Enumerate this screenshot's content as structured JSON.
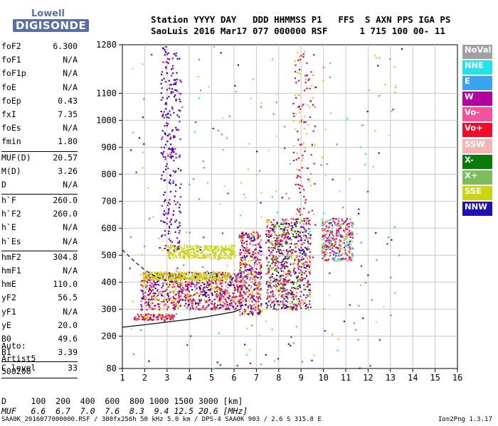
{
  "logo": {
    "line1": "Lowell",
    "line2": "DIGISONDE"
  },
  "header": {
    "line1": "Station YYYY DAY   DDD HHMMSS P1   FFS  S AXN PPS IGA PS",
    "line2": "SaoLuis 2016 Mar17 077 000000 RSF      1 715 100 00- 11"
  },
  "params": [
    [
      {
        "k": "foF2",
        "v": "6.300"
      },
      {
        "k": "foF1",
        "v": "N/A"
      },
      {
        "k": "foF1p",
        "v": "N/A"
      },
      {
        "k": "foE",
        "v": "N/A"
      },
      {
        "k": "foEp",
        "v": "0.43"
      },
      {
        "k": "fxI",
        "v": "7.35"
      },
      {
        "k": "foEs",
        "v": "N/A"
      },
      {
        "k": "fmin",
        "v": "1.80"
      }
    ],
    [
      {
        "k": "MUF(D)",
        "v": "20.57"
      },
      {
        "k": "M(D)",
        "v": "3.26"
      },
      {
        "k": "D",
        "v": "N/A"
      }
    ],
    [
      {
        "k": "h`F",
        "v": "260.0"
      },
      {
        "k": "h`F2",
        "v": "260.0"
      },
      {
        "k": "h`E",
        "v": "N/A"
      },
      {
        "k": "h`Es",
        "v": "N/A"
      }
    ],
    [
      {
        "k": "hmF2",
        "v": "304.8"
      },
      {
        "k": "hmF1",
        "v": "N/A"
      },
      {
        "k": "hmE",
        "v": "110.0"
      },
      {
        "k": "yF2",
        "v": "56.5"
      },
      {
        "k": "yF1",
        "v": "N/A"
      },
      {
        "k": "yE",
        "v": "20.0"
      },
      {
        "k": "B0",
        "v": "49.6"
      },
      {
        "k": "B1",
        "v": "3.39"
      }
    ],
    [
      {
        "k": "C-level",
        "v": "33"
      }
    ]
  ],
  "auto": {
    "l1": "Auto:",
    "l2": "Artist5",
    "l3": "500200"
  },
  "legend": [
    {
      "label": "NoVal",
      "bg": "#a0a0a0",
      "fg": "#ffffff"
    },
    {
      "label": "NNE",
      "bg": "#22e4e8",
      "fg": "#ffffff"
    },
    {
      "label": "E",
      "bg": "#3ba4ee",
      "fg": "#ffffff"
    },
    {
      "label": "W",
      "bg": "#b4009c",
      "fg": "#ffffff"
    },
    {
      "label": "Vo-",
      "bg": "#f6529c",
      "fg": "#ffffff"
    },
    {
      "label": "Vo+",
      "bg": "#f40a2a",
      "fg": "#ffffff"
    },
    {
      "label": "SSW",
      "bg": "#f4b4b4",
      "fg": "#ffffff"
    },
    {
      "label": "X-",
      "bg": "#0a7a0a",
      "fg": "#ffffff"
    },
    {
      "label": "X+",
      "bg": "#7cbc5c",
      "fg": "#ffffff"
    },
    {
      "label": "SSE",
      "bg": "#cdd414",
      "fg": "#ffffff"
    },
    {
      "label": "NNW",
      "bg": "#2010b0",
      "fg": "#ffffff"
    }
  ],
  "dmuf": {
    "d": "D     100  200  400  600  800 1000 1500 3000 [km]",
    "muf": "MUF   6.6  6.7  7.0  7.6  8.3  9.4 12.5 20.6 [MHz]"
  },
  "footer": {
    "left": "SAA0K_2016077000000.RSF / 300fx256h 50 kHz 5.0 km / DPS-4 SAA0K 903 / 2.6 S 315.8 E",
    "right": "Ion2Png 1.3.17"
  },
  "chart_data": {
    "type": "scatter",
    "x_ticks": [
      1,
      2,
      3,
      4,
      5,
      6,
      7,
      8,
      9,
      10,
      11,
      12,
      13,
      14,
      15,
      16
    ],
    "y_ticks": [
      80,
      200,
      300,
      400,
      500,
      600,
      700,
      800,
      900,
      1000,
      1100,
      1280
    ],
    "xlim": [
      1,
      16
    ],
    "ylim": [
      80,
      1280
    ],
    "grid": true,
    "traces": [
      {
        "name": "profile-solid",
        "style": "solid",
        "points": [
          [
            1,
            233
          ],
          [
            2,
            242
          ],
          [
            3,
            252
          ],
          [
            4,
            262
          ],
          [
            5,
            275
          ],
          [
            6,
            290
          ],
          [
            6.3,
            300
          ]
        ]
      },
      {
        "name": "profile-dashed",
        "style": "dashed",
        "points": [
          [
            1,
            520
          ],
          [
            1.5,
            480
          ],
          [
            2,
            445
          ],
          [
            2.5,
            420
          ],
          [
            3,
            405
          ],
          [
            3.5,
            395
          ]
        ]
      }
    ],
    "echo_clusters": [
      {
        "f": [
          1.5,
          3.3
        ],
        "h": [
          262,
          285
        ],
        "colors": [
          "#f40a2a",
          "#cdd414",
          "#b4009c",
          "#f6529c"
        ],
        "n": 140
      },
      {
        "f": [
          1.8,
          6.3
        ],
        "h": [
          300,
          440
        ],
        "colors": [
          "#f40a2a",
          "#b4009c",
          "#2010b0",
          "#f6529c",
          "#cdd414"
        ],
        "n": 900
      },
      {
        "f": [
          1.8,
          5.8
        ],
        "h": [
          410,
          440
        ],
        "colors": [
          "#cdd414"
        ],
        "n": 260
      },
      {
        "f": [
          3.0,
          6.0
        ],
        "h": [
          490,
          540
        ],
        "colors": [
          "#cdd414"
        ],
        "n": 300
      },
      {
        "f": [
          6.2,
          7.2
        ],
        "h": [
          280,
          590
        ],
        "colors": [
          "#f40a2a",
          "#cdd414",
          "#b4009c",
          "#f6529c",
          "#2010b0"
        ],
        "n": 450
      },
      {
        "f": [
          7.4,
          9.4
        ],
        "h": [
          300,
          640
        ],
        "colors": [
          "#f40a2a",
          "#cdd414",
          "#b4009c",
          "#f6529c",
          "#2010b0",
          "#0a7a0a"
        ],
        "n": 800
      },
      {
        "f": [
          9.9,
          11.3
        ],
        "h": [
          480,
          640
        ],
        "colors": [
          "#cdd414",
          "#f40a2a",
          "#b4009c",
          "#f6529c",
          "#22e4e8"
        ],
        "n": 350
      },
      {
        "f": [
          2.7,
          3.6
        ],
        "h": [
          520,
          1280
        ],
        "colors": [
          "#2010b0",
          "#b4009c"
        ],
        "n": 260
      },
      {
        "f": [
          8.6,
          9.6
        ],
        "h": [
          650,
          1260
        ],
        "colors": [
          "#b4009c",
          "#cdd414",
          "#f40a2a"
        ],
        "n": 120
      },
      {
        "f": [
          1.3,
          13.5
        ],
        "h": [
          80,
          1280
        ],
        "colors": [
          "#22e4e8",
          "#cdd414",
          "#b4009c",
          "#f6529c",
          "#3ba4ee",
          "#2010b0",
          "#f4b4b4"
        ],
        "n": 260
      }
    ]
  }
}
